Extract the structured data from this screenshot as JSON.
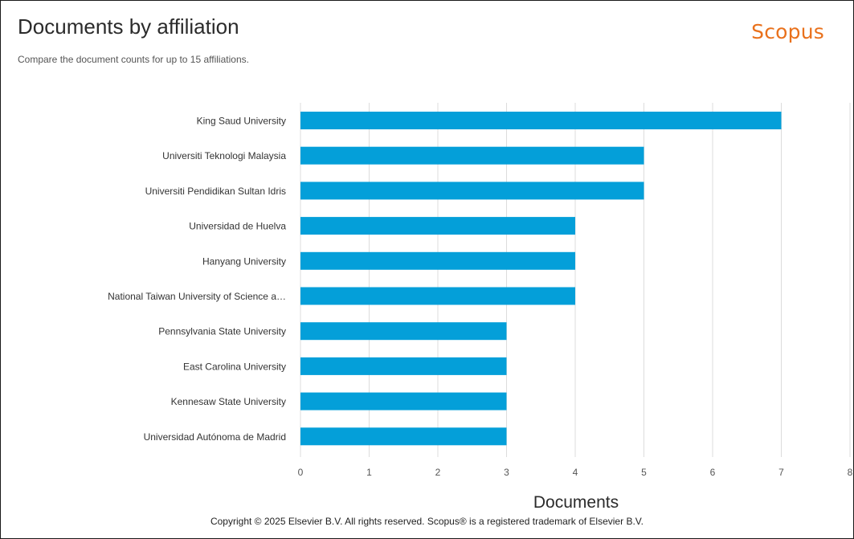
{
  "header": {
    "title": "Documents by affiliation",
    "subtitle": "Compare the document counts for up to 15 affiliations.",
    "brand": "Scopus"
  },
  "footer": {
    "copyright": "Copyright © 2025 Elsevier B.V. All rights reserved. Scopus® is a registered trademark of Elsevier B.V."
  },
  "colors": {
    "bar": "#049fd9",
    "grid": "#dcdcdc",
    "brand": "#e9711c"
  },
  "chart_data": {
    "type": "bar",
    "orientation": "horizontal",
    "title": "Documents by affiliation",
    "subtitle": "Compare the document counts for up to 15 affiliations.",
    "xlabel": "Documents",
    "ylabel": "",
    "xlim": [
      0,
      8
    ],
    "xticks": [
      "0",
      "1",
      "2",
      "3",
      "4",
      "5",
      "6",
      "7",
      "8"
    ],
    "grid": true,
    "categories": [
      "King Saud University",
      "Universiti Teknologi Malaysia",
      "Universiti Pendidikan Sultan Idris",
      "Universidad de Huelva",
      "Hanyang University",
      "National Taiwan University of Science a…",
      "Pennsylvania State University",
      "East Carolina University",
      "Kennesaw State University",
      "Universidad Autónoma de Madrid"
    ],
    "values": [
      7,
      5,
      5,
      4,
      4,
      4,
      3,
      3,
      3,
      3
    ]
  }
}
